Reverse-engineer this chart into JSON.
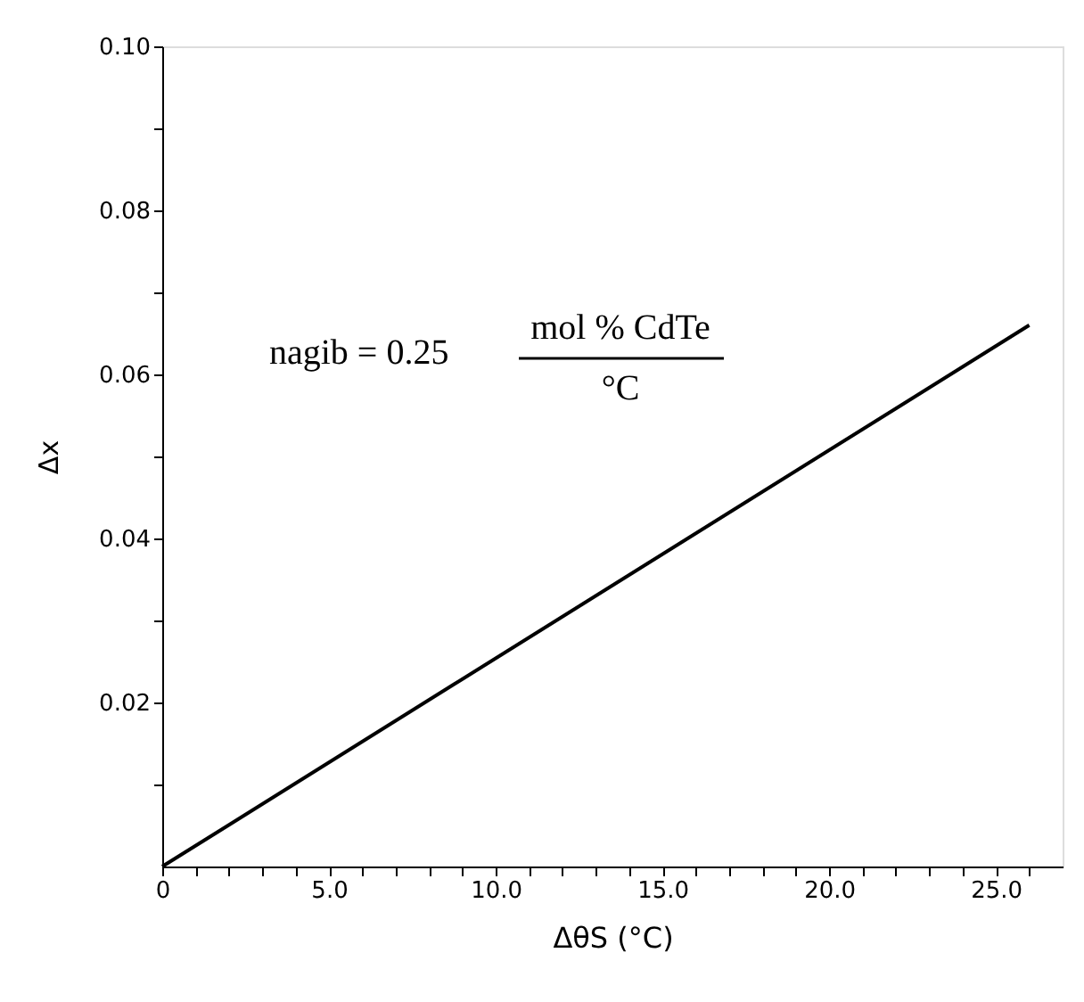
{
  "chart_data": {
    "type": "line",
    "xlabel": "ΔθS (°C)",
    "ylabel": "Δx",
    "x": [
      0,
      26
    ],
    "series": [
      {
        "color": "#000000",
        "values": [
          0,
          0.066
        ]
      }
    ],
    "xlim": [
      0,
      27
    ],
    "ylim": [
      0,
      0.1
    ],
    "xticks": [
      {
        "value": 0,
        "label": "0"
      },
      {
        "value": 1,
        "label": null
      },
      {
        "value": 2,
        "label": null
      },
      {
        "value": 3,
        "label": null
      },
      {
        "value": 4,
        "label": null
      },
      {
        "value": 5,
        "label": "5.0"
      },
      {
        "value": 6,
        "label": null
      },
      {
        "value": 7,
        "label": null
      },
      {
        "value": 8,
        "label": null
      },
      {
        "value": 9,
        "label": null
      },
      {
        "value": 10,
        "label": "10.0"
      },
      {
        "value": 11,
        "label": null
      },
      {
        "value": 12,
        "label": null
      },
      {
        "value": 13,
        "label": null
      },
      {
        "value": 14,
        "label": null
      },
      {
        "value": 15,
        "label": "15.0"
      },
      {
        "value": 16,
        "label": null
      },
      {
        "value": 17,
        "label": null
      },
      {
        "value": 18,
        "label": null
      },
      {
        "value": 19,
        "label": null
      },
      {
        "value": 20,
        "label": "20.0"
      },
      {
        "value": 21,
        "label": null
      },
      {
        "value": 22,
        "label": null
      },
      {
        "value": 23,
        "label": null
      },
      {
        "value": 24,
        "label": null
      },
      {
        "value": 25,
        "label": "25.0"
      },
      {
        "value": 26,
        "label": null
      }
    ],
    "yticks": [
      {
        "value": 0.01,
        "label": null
      },
      0.02,
      {
        "value": 0.03,
        "label": null
      },
      0.04,
      {
        "value": 0.05,
        "label": null
      },
      0.06,
      {
        "value": 0.07,
        "label": null
      },
      0.08,
      {
        "value": 0.09,
        "label": null
      },
      {
        "value": 0.1,
        "label": "0.10"
      }
    ],
    "annotations": [
      "nagib = 0.25",
      "mol % CdTe",
      "°C"
    ],
    "grid": false,
    "legend": false,
    "marker": "none",
    "line_style": "solid"
  }
}
